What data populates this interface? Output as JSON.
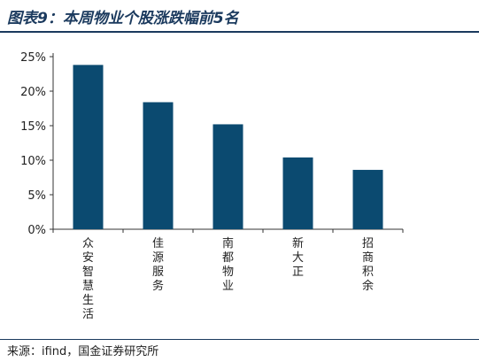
{
  "title": "图表9：本周物业个股涨跌幅前5名",
  "source": "来源：ifind，国金证券研究所",
  "colors": {
    "bar": "#0b4a70",
    "title": "#1b3a5e",
    "axis": "#333333"
  },
  "chart_data": {
    "type": "bar",
    "categories": [
      "众安智慧生活",
      "佳源服务",
      "南都物业",
      "新大正",
      "招商积余"
    ],
    "values": [
      23.8,
      18.4,
      15.2,
      10.4,
      8.6
    ],
    "unit": "%",
    "ylim": [
      0,
      25
    ],
    "yticks": [
      0,
      5,
      10,
      15,
      20,
      25
    ],
    "ytick_labels": [
      "0%",
      "5%",
      "10%",
      "15%",
      "20%",
      "25%"
    ],
    "grid": false,
    "legend": "none"
  }
}
